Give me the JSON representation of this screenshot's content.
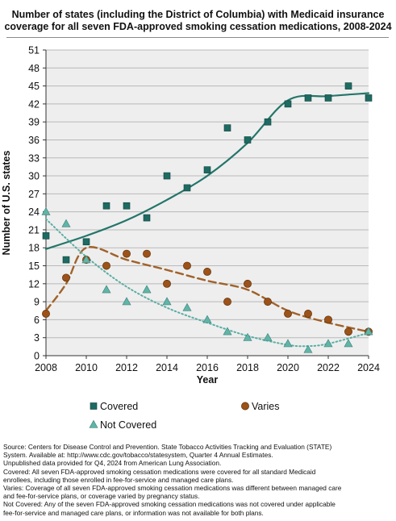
{
  "title": {
    "line1": "Number of states (including the District of Columbia) with Medicaid insurance",
    "line2": "coverage for all seven FDA-approved smoking cessation medications, 2008-2024"
  },
  "colors": {
    "covered": "#1d6b62",
    "varies": "#9c5218",
    "not_covered": "#5fb5a8",
    "trend_covered": "#24756a",
    "trend_varies": "#a0622a",
    "trend_not_covered": "#5aaea3",
    "grid": "#b9b9b9",
    "plot_bg": "#eeeeee"
  },
  "chart_data": {
    "type": "scatter",
    "xlabel": "Year",
    "ylabel": "Number of U.S. states",
    "xlim": [
      2008,
      2024
    ],
    "ylim": [
      0,
      51
    ],
    "x_ticks": [
      2008,
      2010,
      2012,
      2014,
      2016,
      2018,
      2020,
      2022,
      2024
    ],
    "y_ticks": [
      0,
      3,
      6,
      9,
      12,
      15,
      18,
      21,
      24,
      27,
      30,
      33,
      36,
      39,
      42,
      45,
      48,
      51
    ],
    "grid": "horizontal",
    "legend_position": "bottom",
    "series": [
      {
        "name": "Covered",
        "marker": "square",
        "x": [
          2008,
          2009,
          2010,
          2011,
          2012,
          2013,
          2014,
          2015,
          2016,
          2017,
          2018,
          2019,
          2020,
          2021,
          2022,
          2023,
          2024
        ],
        "y": [
          20,
          16,
          19,
          25,
          25,
          23,
          30,
          28,
          31,
          38,
          36,
          39,
          42,
          43,
          43,
          45,
          43
        ],
        "trend": {
          "style": "solid",
          "x": [
            2008,
            2010,
            2012,
            2014,
            2016,
            2018,
            2020,
            2022,
            2024
          ],
          "y": [
            17.8,
            20,
            22.6,
            26,
            30,
            35.5,
            42.6,
            43.3,
            43.8
          ]
        }
      },
      {
        "name": "Varies",
        "marker": "circle",
        "x": [
          2008,
          2009,
          2010,
          2011,
          2012,
          2013,
          2014,
          2015,
          2016,
          2017,
          2018,
          2019,
          2020,
          2021,
          2022,
          2023,
          2024
        ],
        "y": [
          7,
          13,
          16,
          15,
          17,
          17,
          12,
          15,
          14,
          9,
          12,
          9,
          7,
          7,
          6,
          4,
          4
        ],
        "trend": {
          "style": "dashed",
          "x": [
            2008,
            2009,
            2010,
            2012,
            2014,
            2016,
            2018,
            2020,
            2022,
            2024
          ],
          "y": [
            7.5,
            12,
            18,
            16,
            14.3,
            12.5,
            11,
            7.5,
            5.5,
            4
          ]
        }
      },
      {
        "name": "Not Covered",
        "marker": "triangle",
        "x": [
          2008,
          2009,
          2010,
          2011,
          2012,
          2013,
          2014,
          2015,
          2016,
          2017,
          2018,
          2019,
          2020,
          2021,
          2022,
          2023,
          2024
        ],
        "y": [
          24,
          22,
          16,
          11,
          9,
          11,
          9,
          8,
          6,
          4,
          3,
          3,
          2,
          1,
          2,
          2,
          4
        ],
        "trend": {
          "style": "dotted",
          "x": [
            2008,
            2010,
            2012,
            2014,
            2016,
            2018,
            2020,
            2021,
            2022,
            2024
          ],
          "y": [
            22.8,
            16.5,
            11.5,
            8,
            5.5,
            3.3,
            1.8,
            1.6,
            2,
            3.8
          ]
        }
      }
    ]
  },
  "source": [
    "Source: Centers for Disease Control and Prevention. State Tobacco Activities Tracking and Evaluation (STATE)",
    "System. Available at: http://www.cdc.gov/tobacco/statesystem, Quarter 4 Annual Estimates.",
    "Unpublished data provided for Q4, 2024 from American Lung Association.",
    "Covered: All seven FDA-approved smoking cessation medications were covered for all standard Medicaid",
    "enrollees, including those enrolled in fee-for-service and managed care plans.",
    "Varies: Coverage of all seven FDA-approved smoking cessation medications was different between managed care",
    "and fee-for-service plans, or coverage varied by pregnancy status.",
    "Not Covered: Any of the seven FDA-approved smoking cessation medications was not covered under applicable",
    "fee-for-service and managed care plans, or information was not available for both plans."
  ]
}
